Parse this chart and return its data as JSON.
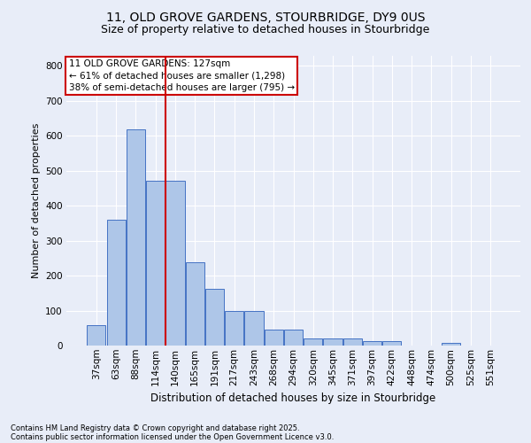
{
  "title_line1": "11, OLD GROVE GARDENS, STOURBRIDGE, DY9 0US",
  "title_line2": "Size of property relative to detached houses in Stourbridge",
  "xlabel": "Distribution of detached houses by size in Stourbridge",
  "ylabel": "Number of detached properties",
  "footer_line1": "Contains HM Land Registry data © Crown copyright and database right 2025.",
  "footer_line2": "Contains public sector information licensed under the Open Government Licence v3.0.",
  "annotation_title": "11 OLD GROVE GARDENS: 127sqm",
  "annotation_line1": "← 61% of detached houses are smaller (1,298)",
  "annotation_line2": "38% of semi-detached houses are larger (795) →",
  "bar_labels": [
    "37sqm",
    "63sqm",
    "88sqm",
    "114sqm",
    "140sqm",
    "165sqm",
    "191sqm",
    "217sqm",
    "243sqm",
    "268sqm",
    "294sqm",
    "320sqm",
    "345sqm",
    "371sqm",
    "397sqm",
    "422sqm",
    "448sqm",
    "474sqm",
    "500sqm",
    "525sqm",
    "551sqm"
  ],
  "bar_values": [
    58,
    360,
    618,
    472,
    472,
    238,
    162,
    100,
    100,
    45,
    45,
    20,
    20,
    20,
    13,
    13,
    1,
    1,
    8,
    1,
    1
  ],
  "bar_color": "#aec6e8",
  "bar_edge_color": "#4472c4",
  "vline_x_index": 3.5,
  "vline_color": "#cc0000",
  "ylim": [
    0,
    830
  ],
  "yticks": [
    0,
    100,
    200,
    300,
    400,
    500,
    600,
    700,
    800
  ],
  "bg_color": "#e8edf8",
  "plot_bg_color": "#e8edf8",
  "grid_color": "#ffffff",
  "annotation_box_color": "#ffffff",
  "annotation_box_edge_color": "#cc0000",
  "title_fontsize": 10,
  "subtitle_fontsize": 9,
  "ylabel_fontsize": 8,
  "xlabel_fontsize": 8.5,
  "tick_fontsize": 7.5,
  "footer_fontsize": 6,
  "ann_fontsize": 7.5
}
